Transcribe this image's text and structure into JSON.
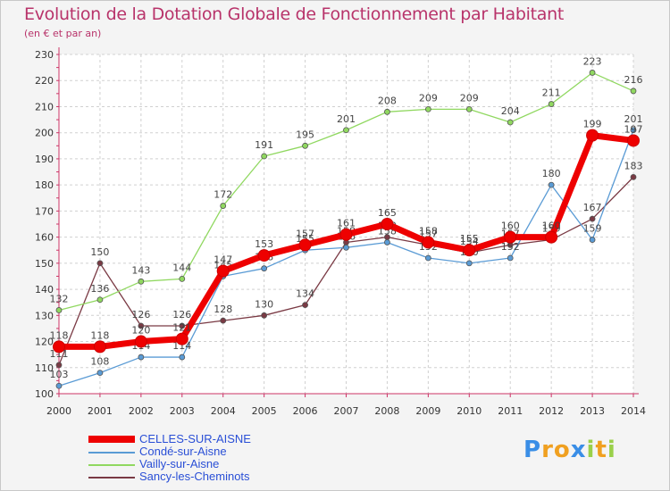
{
  "chart_data": {
    "type": "line",
    "title": "Evolution de la Dotation Globale de Fonctionnement par Habitant",
    "subtitle": "(en € et par an)",
    "x": [
      "2000",
      "2001",
      "2002",
      "2003",
      "2004",
      "2005",
      "2006",
      "2007",
      "2008",
      "2009",
      "2010",
      "2011",
      "2012",
      "2013",
      "2014"
    ],
    "ylim": [
      100,
      230
    ],
    "yticks": [
      100,
      110,
      120,
      130,
      140,
      150,
      160,
      170,
      180,
      190,
      200,
      210,
      220,
      230
    ],
    "grid": true,
    "series": [
      {
        "name": "CELLES-SUR-AISNE",
        "color": "#ee0000",
        "values": [
          118,
          118,
          120,
          121,
          147,
          153,
          157,
          161,
          165,
          158,
          155,
          160,
          160,
          199,
          197
        ]
      },
      {
        "name": "Condé-sur-Aisne",
        "color": "#5a9bd5",
        "values": [
          103,
          108,
          114,
          114,
          145,
          148,
          155,
          156,
          158,
          152,
          150,
          152,
          180,
          159,
          201
        ]
      },
      {
        "name": "Vailly-sur-Aisne",
        "color": "#90d860",
        "values": [
          132,
          136,
          143,
          144,
          172,
          191,
          195,
          201,
          208,
          209,
          209,
          204,
          211,
          223,
          216
        ]
      },
      {
        "name": "Sancy-les-Cheminots",
        "color": "#7a3a44",
        "values": [
          111,
          150,
          126,
          126,
          128,
          130,
          134,
          158,
          160,
          157,
          154,
          157,
          159,
          167,
          183
        ]
      }
    ]
  },
  "brand": {
    "letters": [
      "P",
      "r",
      "o",
      "x",
      "i",
      "t",
      "i"
    ],
    "colors": [
      "#3a8ee6",
      "#f0a020",
      "#f0a020",
      "#3a8ee6",
      "#9ad04a",
      "#f0a020",
      "#9ad04a"
    ]
  }
}
